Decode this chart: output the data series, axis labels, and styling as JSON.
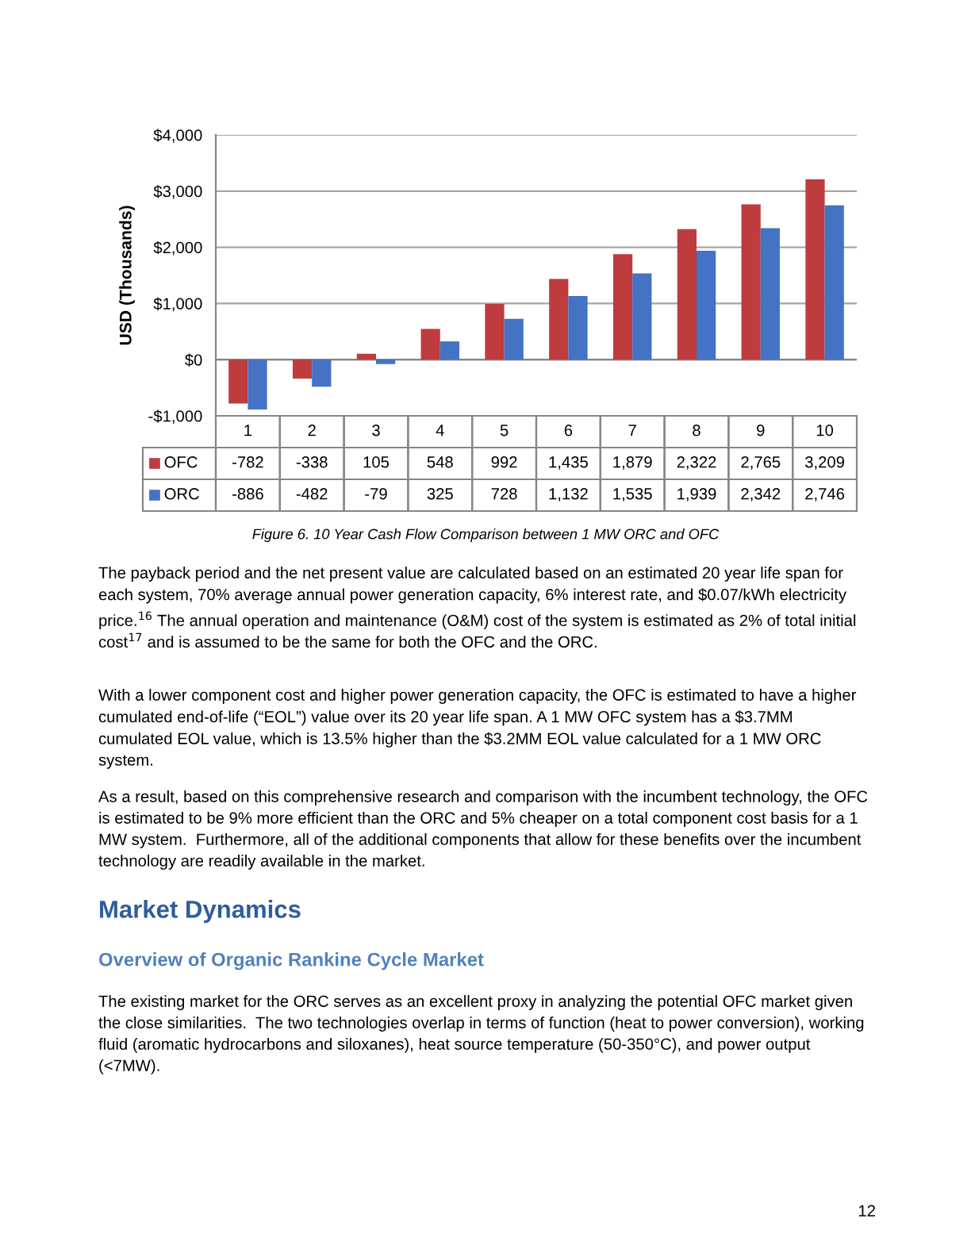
{
  "chart_data": {
    "type": "bar",
    "ylabel": "USD (Thousands)",
    "categories": [
      "1",
      "2",
      "3",
      "4",
      "5",
      "6",
      "7",
      "8",
      "9",
      "10"
    ],
    "series": [
      {
        "name": "OFC",
        "color": "#be3b3e",
        "values": [
          -782,
          -338,
          105,
          548,
          992,
          1435,
          1879,
          2322,
          2765,
          3209
        ],
        "value_labels": [
          "-782",
          "-338",
          "105",
          "548",
          "992",
          "1,435",
          "1,879",
          "2,322",
          "2,765",
          "3,209"
        ]
      },
      {
        "name": "ORC",
        "color": "#4472c4",
        "values": [
          -886,
          -482,
          -79,
          325,
          728,
          1132,
          1535,
          1939,
          2342,
          2746
        ],
        "value_labels": [
          "-886",
          "-482",
          "-79",
          "325",
          "728",
          "1,132",
          "1,535",
          "1,939",
          "2,342",
          "2,746"
        ]
      }
    ],
    "ylim": [
      -1000,
      4000
    ],
    "yticks": [
      {
        "value": -1000,
        "label": "-$1,000"
      },
      {
        "value": 0,
        "label": "$0"
      },
      {
        "value": 1000,
        "label": "$1,000"
      },
      {
        "value": 2000,
        "label": "$2,000"
      },
      {
        "value": 3000,
        "label": "$3,000"
      },
      {
        "value": 4000,
        "label": "$4,000"
      }
    ],
    "grid": "y",
    "legend": "bottom",
    "annotations": [
      "Figure 6. 10 Year Cash Flow Comparison between 1 MW ORC and OFC",
      "The payback period and the net present value are calculated based on an estimated 20 year life span for each system, 70% average annual power generation capacity, 6% interest rate, and $0.07/kWh electricity price.$^{16}$ The annual operation and maintenance (O&M) cost of the system is estimated as 2% of total initial cost$^{17}$ and is assumed to be the same for both the OFC and the ORC.",
      "With a lower component cost and higher power generation capacity, the OFC is estimated to have a higher cumulated end-of-life (“EOL”) value over its 20 year life span. A 1 MW OFC system has a $3.7MM cumulated EOL value, which is 13.5% higher than the $3.2MM EOL value calculated for a 1 MW ORC system.",
      "As a result, based on this comprehensive research and comparison with the incumbent technology, the OFC is estimated to be 9% more efficient than the ORC and 5% cheaper on a total component cost basis for a 1 MW system.  Furthermore, all of the additional components that allow for these benefits over the incumbent technology are readily available in the market.",
      "Market Dynamics",
      "Overview of Organic Rankine Cycle Market",
      "The existing market for the ORC serves as an excellent proxy in analyzing the potential OFC market given the close similarities.  The two technologies overlap in terms of function (heat to power conversion), working fluid (aromatic hydrocarbons and siloxanes), heat source temperature (50-350°C), and power output (<7MW).",
      "12"
    ]
  }
}
